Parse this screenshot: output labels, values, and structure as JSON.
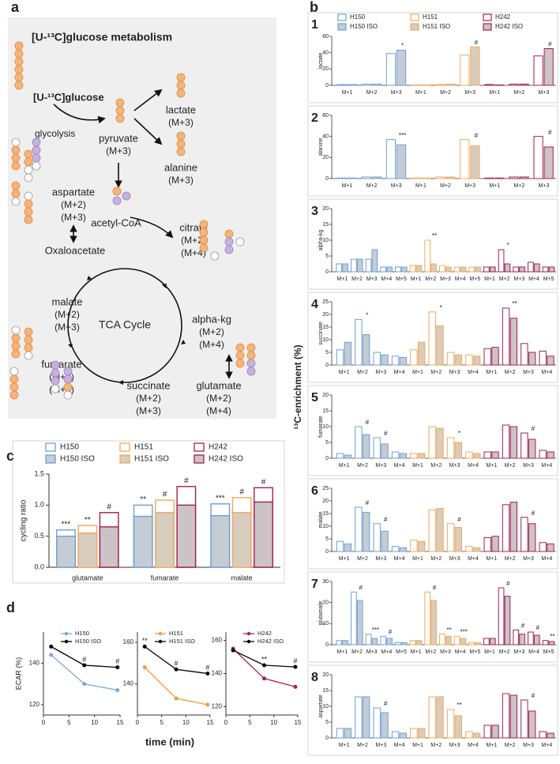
{
  "diagram": {
    "label": "a",
    "title": "[U-¹³C]glucose metabolism",
    "substrate": "[U-¹³C]glucose",
    "process": "glycolysis",
    "center": "TCA Cycle",
    "nodes": [
      {
        "name": "lactate",
        "labels": [
          "(M+3)"
        ]
      },
      {
        "name": "pyruvate",
        "labels": [
          "(M+3)"
        ]
      },
      {
        "name": "alanine",
        "labels": [
          "(M+3)"
        ]
      },
      {
        "name": "aspartate",
        "labels": [
          "(M+2)",
          "(M+3)"
        ]
      },
      {
        "name": "acetyl-CoA"
      },
      {
        "name": "Oxaloacetate"
      },
      {
        "name": "citrate",
        "labels": [
          "(M+2)",
          "(M+4)"
        ]
      },
      {
        "name": "malate",
        "labels": [
          "(M+2)",
          "(M+3)"
        ]
      },
      {
        "name": "alpha-kg",
        "labels": [
          "(M+2)",
          "(M+4)"
        ]
      },
      {
        "name": "fumarate",
        "labels": [
          "(M+2)",
          "(M+3)"
        ]
      },
      {
        "name": "succinate",
        "labels": [
          "(M+2)",
          "(M+3)"
        ]
      },
      {
        "name": "glutamate",
        "labels": [
          "(M+2)",
          "(M+4)"
        ]
      }
    ]
  },
  "chart_data": [
    {
      "type": "bar",
      "label": "b",
      "ylabel": "¹³C-enrichment (%)",
      "series": [
        {
          "name": "H150",
          "color": "#6f9fd6",
          "fill": "#ffffff"
        },
        {
          "name": "H150 ISO",
          "color": "#6f9fd6",
          "fill": "#c4ccd4"
        },
        {
          "name": "H151",
          "color": "#f2a85c",
          "fill": "#ffffff"
        },
        {
          "name": "H151 ISO",
          "color": "#f2a85c",
          "fill": "#d8ccbd"
        },
        {
          "name": "H242",
          "color": "#a3204f",
          "fill": "#ffffff"
        },
        {
          "name": "H242 ISO",
          "color": "#a3204f",
          "fill": "#ccc3c7"
        }
      ],
      "panels": [
        {
          "number": "1",
          "ylabel": "lactate",
          "categories": [
            "M+1",
            "M+2",
            "M+3"
          ],
          "ylim": [
            0,
            60
          ],
          "yticks": [
            0,
            20,
            40,
            60
          ],
          "values": [
            [
              1,
              1.5,
              39
            ],
            [
              1,
              1.5,
              43
            ],
            [
              0.5,
              1,
              37
            ],
            [
              0.5,
              1.5,
              47
            ],
            [
              1,
              1.5,
              36
            ],
            [
              0.5,
              1.5,
              45
            ]
          ],
          "annotations": [
            [
              null,
              null,
              "*"
            ],
            [
              null,
              null,
              "#"
            ],
            [
              null,
              null,
              "#"
            ]
          ]
        },
        {
          "number": "2",
          "ylabel": "alanine",
          "categories": [
            "M+1",
            "M+2",
            "M+3"
          ],
          "ylim": [
            0,
            60
          ],
          "yticks": [
            0,
            20,
            40,
            60
          ],
          "values": [
            [
              0.5,
              1.5,
              37
            ],
            [
              0.5,
              1.5,
              32
            ],
            [
              0.5,
              1.5,
              37
            ],
            [
              0.5,
              1.5,
              31
            ],
            [
              0.5,
              1.5,
              40
            ],
            [
              0.5,
              1.5,
              30
            ]
          ],
          "annotations": [
            [
              null,
              null,
              "***"
            ],
            [
              null,
              null,
              "#"
            ],
            [
              null,
              null,
              "#"
            ]
          ]
        },
        {
          "number": "3",
          "ylabel": "alpha-kg",
          "categories": [
            "M+1",
            "M+2",
            "M+3",
            "M+4",
            "M+5"
          ],
          "ylim": [
            0,
            20
          ],
          "yticks": [
            0,
            5,
            10,
            15,
            20
          ],
          "values": [
            [
              2.5,
              4,
              4,
              1.5,
              1.5
            ],
            [
              2.5,
              4,
              7,
              1.5,
              1.5
            ],
            [
              2,
              10,
              2,
              1.5,
              1.5
            ],
            [
              2,
              2.5,
              1.5,
              1.5,
              1.5
            ],
            [
              1.5,
              7,
              1.5,
              3,
              1.5
            ],
            [
              1.5,
              2.5,
              1.5,
              2.5,
              1.5
            ]
          ],
          "annotations": [
            [
              null,
              null,
              null,
              null,
              null
            ],
            [
              null,
              "**",
              null,
              null,
              null
            ],
            [
              null,
              "*",
              null,
              null,
              null
            ]
          ]
        },
        {
          "number": "4",
          "ylabel": "succinate",
          "categories": [
            "M+1",
            "M+2",
            "M+3",
            "M+4"
          ],
          "ylim": [
            0,
            25
          ],
          "yticks": [
            0,
            5,
            10,
            15,
            20,
            25
          ],
          "values": [
            [
              6,
              18,
              5,
              3.5
            ],
            [
              9,
              12,
              4,
              3
            ],
            [
              6,
              21,
              5,
              4
            ],
            [
              9,
              15.5,
              4,
              3.5
            ],
            [
              6.5,
              22.5,
              8.5,
              5.5
            ],
            [
              7,
              18.5,
              5,
              3.5
            ]
          ],
          "annotations": [
            [
              null,
              "*",
              null,
              null
            ],
            [
              null,
              "*",
              null,
              null
            ],
            [
              null,
              "**",
              null,
              null
            ]
          ]
        },
        {
          "number": "5",
          "ylabel": "fumarate",
          "categories": [
            "M+1",
            "M+2",
            "M+3",
            "M+4"
          ],
          "ylim": [
            0,
            20
          ],
          "yticks": [
            0,
            5,
            10,
            15,
            20
          ],
          "values": [
            [
              1.5,
              10,
              6.5,
              2
            ],
            [
              1,
              7.5,
              4.5,
              1.5
            ],
            [
              1.5,
              10,
              6.5,
              2
            ],
            [
              1.5,
              9.5,
              5,
              1.5
            ],
            [
              2,
              10.5,
              8,
              2.5
            ],
            [
              2,
              10,
              6,
              2
            ]
          ],
          "annotations": [
            [
              null,
              "#",
              "#",
              null
            ],
            [
              null,
              null,
              "*",
              null
            ],
            [
              null,
              null,
              "#",
              null
            ]
          ]
        },
        {
          "number": "6",
          "ylabel": "malate",
          "categories": [
            "M+1",
            "M+2",
            "M+3",
            "M+4"
          ],
          "ylim": [
            0,
            25
          ],
          "yticks": [
            0,
            5,
            10,
            15,
            20,
            25
          ],
          "values": [
            [
              4,
              17.5,
              11,
              2
            ],
            [
              3,
              15.5,
              8,
              1.5
            ],
            [
              4.5,
              16.5,
              11,
              2
            ],
            [
              4,
              17,
              9.5,
              1.5
            ],
            [
              5.5,
              18.5,
              13.5,
              3.5
            ],
            [
              6,
              19.5,
              11,
              3
            ]
          ],
          "annotations": [
            [
              null,
              "#",
              "#",
              null
            ],
            [
              null,
              null,
              "#",
              null
            ],
            [
              null,
              null,
              "#",
              null
            ]
          ]
        },
        {
          "number": "7",
          "ylabel": "glutamate",
          "categories": [
            "M+1",
            "M+2",
            "M+3",
            "M+4",
            "M+5"
          ],
          "ylim": [
            0,
            30
          ],
          "yticks": [
            0,
            10,
            20,
            30
          ],
          "values": [
            [
              2,
              25,
              5,
              4,
              1
            ],
            [
              2,
              21,
              3,
              3,
              1
            ],
            [
              2,
              25,
              5,
              4,
              1
            ],
            [
              2,
              21,
              4,
              3,
              1
            ],
            [
              3,
              27,
              7,
              6,
              2
            ],
            [
              3,
              23,
              5,
              4.5,
              1.5
            ]
          ],
          "annotations": [
            [
              null,
              "#",
              "***",
              "#",
              null
            ],
            [
              null,
              "#",
              "**",
              "***",
              null
            ],
            [
              null,
              "#",
              "#",
              "#",
              "**"
            ]
          ]
        },
        {
          "number": "8",
          "ylabel": "aspartate",
          "categories": [
            "M+1",
            "M+2",
            "M+3",
            "M+4"
          ],
          "ylim": [
            0,
            20
          ],
          "yticks": [
            0,
            5,
            10,
            15,
            20
          ],
          "values": [
            [
              3,
              13,
              9.5,
              2
            ],
            [
              3,
              13,
              8,
              1.5
            ],
            [
              3,
              13,
              9,
              2
            ],
            [
              3,
              13,
              7,
              1.5
            ],
            [
              4,
              14,
              12,
              2
            ],
            [
              4,
              13.5,
              8.5,
              1.5
            ]
          ],
          "annotations": [
            [
              null,
              null,
              "#",
              null
            ],
            [
              null,
              null,
              "**",
              null
            ],
            [
              null,
              null,
              "#",
              null
            ]
          ]
        }
      ]
    },
    {
      "type": "overlay",
      "label": "c",
      "ylabel": "cycling ratio",
      "categories": [
        "glutamate",
        "fumarate",
        "malate"
      ],
      "ylim": [
        0,
        1.5
      ],
      "yticks": [
        {
          "value": 0,
          "label": "0.0"
        },
        {
          "value": 0.5,
          "label": "0.5"
        },
        {
          "value": 1,
          "label": "1.0"
        },
        {
          "value": 1.5,
          "label": "1.5"
        }
      ],
      "series": [
        {
          "name": "H150",
          "color": "#6f9fd6",
          "fill": "#ffffff",
          "values": [
            0.6,
            1.0,
            1.02
          ]
        },
        {
          "name": "H150 ISO",
          "color": "#6f9fd6",
          "fill": "#c4ccd4",
          "values": [
            0.5,
            0.82,
            0.83
          ]
        },
        {
          "name": "H151",
          "color": "#f2a85c",
          "fill": "#ffffff",
          "values": [
            0.67,
            1.08,
            1.12
          ]
        },
        {
          "name": "H151 ISO",
          "color": "#f2a85c",
          "fill": "#d8ccbd",
          "values": [
            0.55,
            0.88,
            0.88
          ]
        },
        {
          "name": "H242",
          "color": "#a3204f",
          "fill": "#ffffff",
          "values": [
            0.88,
            1.3,
            1.28
          ]
        },
        {
          "name": "H242 ISO",
          "color": "#a3204f",
          "fill": "#ccc3c7",
          "values": [
            0.65,
            1.0,
            1.05
          ]
        }
      ],
      "annotations": [
        [
          "***",
          "**",
          "***"
        ],
        [
          "**",
          "#",
          "#"
        ],
        [
          "#",
          "#",
          "#"
        ]
      ]
    },
    {
      "type": "line",
      "label": "d",
      "ylabel": "ECAR (%)",
      "xlabel": "time (min)",
      "x": [
        1.5,
        8,
        14.5
      ],
      "xlim": [
        0,
        15
      ],
      "xticks": [
        0,
        5,
        10,
        15
      ],
      "panels": [
        {
          "ylim": [
            115,
            155
          ],
          "yticks": [
            120,
            140
          ],
          "series": [
            {
              "name": "H150",
              "color": "#7ba7d9",
              "values": [
                144,
                130,
                127
              ]
            },
            {
              "name": "H150 ISO",
              "color": "#000000",
              "values": [
                148,
                139,
                138
              ]
            }
          ],
          "annotations": [
            null,
            "#",
            "#"
          ]
        },
        {
          "ylim": [
            125,
            165
          ],
          "yticks": [
            140,
            160
          ],
          "series": [
            {
              "name": "H151",
              "color": "#f39a3c",
              "values": [
                148,
                133,
                130
              ]
            },
            {
              "name": "H151 ISO",
              "color": "#000000",
              "values": [
                158,
                147,
                145
              ]
            }
          ],
          "annotations": [
            "**",
            "#",
            "#"
          ]
        },
        {
          "ylim": [
            115,
            165
          ],
          "yticks": [
            120,
            140,
            160
          ],
          "series": [
            {
              "name": "H242",
              "color": "#b01e4f",
              "values": [
                155,
                137,
                132
              ]
            },
            {
              "name": "H242 ISO",
              "color": "#000000",
              "values": [
                154,
                145,
                144
              ]
            }
          ],
          "annotations": [
            null,
            "**",
            "#"
          ]
        }
      ]
    }
  ]
}
